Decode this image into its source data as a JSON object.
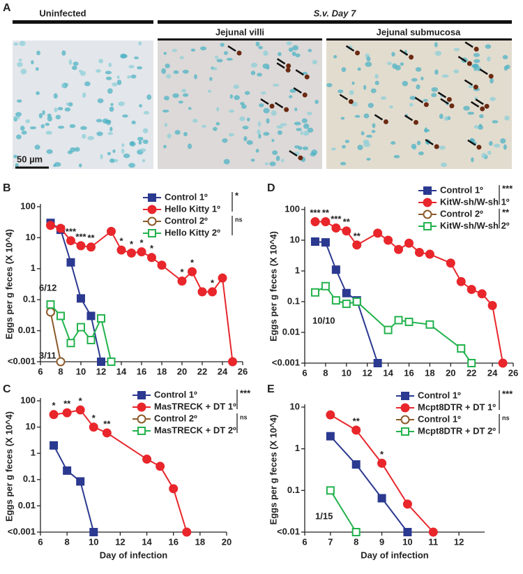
{
  "panel_a": {
    "label": "A",
    "header_left": "Uninfected",
    "header_right": "S.v. Day 7",
    "sub_villi": "Jejunal villi",
    "sub_submucosa": "Jejunal submucosa",
    "scale": "50 µm"
  },
  "chart_data": [
    {
      "type": "line",
      "panel": "B",
      "ylabel": "Eggs per g feces (X 10^4)",
      "log_y": true,
      "xlim": [
        6,
        26
      ],
      "xticks": [
        6,
        8,
        10,
        12,
        14,
        16,
        18,
        20,
        22,
        24,
        26
      ],
      "ylim": [
        0.001,
        100
      ],
      "yticks": [
        100,
        10,
        1,
        0.1,
        0.01,
        {
          "value": 0.001,
          "label": "<0.001"
        }
      ],
      "series": [
        {
          "name": "Control 1º",
          "color": "#2b3990",
          "marker": "square",
          "filled": true,
          "x": [
            7,
            8,
            9,
            10,
            11,
            12
          ],
          "values": [
            30,
            18,
            1.6,
            0.11,
            0.03,
            0.001
          ]
        },
        {
          "name": "Hello Kitty 1º",
          "color": "#e8262b",
          "marker": "circle",
          "filled": true,
          "x": [
            7,
            8,
            9,
            10,
            11,
            13,
            14,
            15,
            16,
            17,
            18,
            20,
            21,
            22,
            23,
            24,
            25
          ],
          "values": [
            25,
            20,
            8,
            5.5,
            5,
            16,
            4,
            3.2,
            3.5,
            2.3,
            1.3,
            0.4,
            0.8,
            0.18,
            0.18,
            0.5,
            0.001
          ]
        },
        {
          "name": "Control 2º",
          "color": "#8b5a2b",
          "marker": "circle",
          "filled": false,
          "x": [
            7,
            8
          ],
          "values": [
            0.04,
            0.001
          ]
        },
        {
          "name": "Hello Kitty 2º",
          "color": "#22b24c",
          "marker": "square",
          "filled": false,
          "x": [
            7,
            8,
            9,
            10,
            11,
            12,
            13
          ],
          "values": [
            0.07,
            0.03,
            0.004,
            0.013,
            0.005,
            0.025,
            0.001
          ]
        }
      ],
      "sig": [
        "*",
        "ns"
      ],
      "annotations": [
        {
          "x": 9,
          "text": "***"
        },
        {
          "x": 10,
          "text": "***"
        },
        {
          "x": 11,
          "text": "**"
        },
        {
          "x": 14,
          "text": "*"
        },
        {
          "x": 15,
          "text": "*"
        },
        {
          "x": 16,
          "text": "*"
        },
        {
          "x": 17,
          "text": "*"
        },
        {
          "x": 20,
          "text": "*"
        },
        {
          "x": 21,
          "text": "*"
        },
        {
          "x": 23,
          "text": "*"
        }
      ],
      "notes": [
        "6/12",
        "3/11"
      ]
    },
    {
      "type": "line",
      "panel": "C",
      "ylabel": "Eggs per g feces (X 10^4)",
      "xlabel": "Day of infection",
      "log_y": true,
      "xlim": [
        6,
        20
      ],
      "xticks": [
        6,
        8,
        10,
        12,
        14,
        16,
        18,
        20
      ],
      "ylim": [
        0.001,
        100
      ],
      "yticks": [
        100,
        10,
        1,
        0.1,
        0.01,
        {
          "value": 0.001,
          "label": "<0.001"
        }
      ],
      "series": [
        {
          "name": "Control 1º",
          "color": "#2b3990",
          "marker": "square",
          "filled": true,
          "x": [
            7,
            8,
            9,
            10
          ],
          "values": [
            2,
            0.22,
            0.085,
            0.001
          ]
        },
        {
          "name": "MasTRECK + DT 1º",
          "color": "#e8262b",
          "marker": "circle",
          "filled": true,
          "x": [
            7,
            8,
            9,
            10,
            11,
            14,
            15,
            16,
            17
          ],
          "values": [
            30,
            35,
            45,
            10,
            6,
            0.6,
            0.32,
            0.045,
            0.001
          ]
        },
        {
          "name": "Control 2º",
          "color": "#8b5a2b",
          "marker": "circle",
          "filled": false,
          "x": [],
          "values": []
        },
        {
          "name": "MasTRECK + DT 2º",
          "color": "#22b24c",
          "marker": "square",
          "filled": false,
          "x": [],
          "values": []
        }
      ],
      "sig": [
        "***",
        "ns"
      ],
      "annotations": [
        {
          "x": 7,
          "text": "*"
        },
        {
          "x": 8,
          "text": "**"
        },
        {
          "x": 9,
          "text": "*"
        },
        {
          "x": 10,
          "text": "*"
        },
        {
          "x": 11,
          "text": "**"
        }
      ],
      "notes": []
    },
    {
      "type": "line",
      "panel": "D",
      "ylabel": "Eggs per g feces (X 10^4)",
      "log_y": true,
      "xlim": [
        6,
        26
      ],
      "xticks": [
        6,
        8,
        10,
        12,
        14,
        16,
        18,
        20,
        22,
        24,
        26
      ],
      "ylim": [
        0.001,
        100
      ],
      "yticks": [
        100,
        10,
        1,
        0.1,
        0.01,
        {
          "value": 0.001,
          "label": "<0.001"
        }
      ],
      "series": [
        {
          "name": "Control 1º",
          "color": "#2b3990",
          "marker": "square",
          "filled": true,
          "x": [
            7,
            8,
            9,
            10,
            11,
            13
          ],
          "values": [
            9,
            8.5,
            1.1,
            0.19,
            0.11,
            0.001
          ]
        },
        {
          "name": "KitW-sh/W-sh 1º",
          "color": "#e8262b",
          "marker": "circle",
          "filled": true,
          "x": [
            7,
            8,
            9,
            10,
            11,
            13,
            14,
            15,
            16,
            17,
            18,
            20,
            21,
            22,
            23,
            24,
            25
          ],
          "values": [
            40,
            40,
            25,
            20,
            7,
            17,
            10,
            5,
            8,
            4,
            3.5,
            1.8,
            0.45,
            0.25,
            0.18,
            0.075,
            0.001
          ]
        },
        {
          "name": "Control 2º",
          "color": "#8b5a2b",
          "marker": "circle",
          "filled": false,
          "x": [],
          "values": []
        },
        {
          "name": "KitW-sh/W-sh 2º",
          "color": "#22b24c",
          "marker": "square",
          "filled": false,
          "x": [
            7,
            8,
            9,
            10,
            11,
            14,
            15,
            16,
            18,
            21,
            22
          ],
          "values": [
            0.2,
            0.32,
            0.11,
            0.085,
            0.1,
            0.012,
            0.025,
            0.022,
            0.018,
            0.003,
            0.001
          ]
        }
      ],
      "sig": [
        "***",
        "**"
      ],
      "annotations": [
        {
          "x": 7,
          "text": "***"
        },
        {
          "x": 8,
          "text": "**"
        },
        {
          "x": 9,
          "text": "***"
        },
        {
          "x": 10,
          "text": "**"
        },
        {
          "x": 11,
          "text": "**"
        }
      ],
      "notes": [
        "10/10"
      ]
    },
    {
      "type": "line",
      "panel": "E",
      "ylabel": "Eggs per g feces (X 10^4)",
      "xlabel": "Day of infection",
      "log_y": true,
      "xlim": [
        6,
        13
      ],
      "xticks": [
        6,
        7,
        8,
        9,
        10,
        11,
        12
      ],
      "ylim": [
        0.01,
        10
      ],
      "yticks": [
        10,
        1,
        0.1,
        {
          "value": 0.01,
          "label": "<0.01"
        }
      ],
      "series": [
        {
          "name": "Control 1º",
          "color": "#2b3990",
          "marker": "square",
          "filled": true,
          "x": [
            7,
            8,
            9,
            10
          ],
          "values": [
            2,
            0.42,
            0.065,
            0.01
          ]
        },
        {
          "name": "Mcpt8DTR + DT 1º",
          "color": "#e8262b",
          "marker": "circle",
          "filled": true,
          "x": [
            7,
            8,
            9,
            10,
            11
          ],
          "values": [
            6.5,
            2.8,
            0.45,
            0.047,
            0.01
          ]
        },
        {
          "name": "Control 1º",
          "color": "#8b5a2b",
          "marker": "circle",
          "filled": false,
          "x": [],
          "values": []
        },
        {
          "name": "Mcpt8DTR + DT 2º",
          "color": "#22b24c",
          "marker": "square",
          "filled": false,
          "x": [
            7,
            8
          ],
          "values": [
            0.1,
            0.01
          ]
        }
      ],
      "sig": [
        "***",
        "ns"
      ],
      "annotations": [
        {
          "x": 8,
          "text": "**"
        },
        {
          "x": 9,
          "text": "*"
        }
      ],
      "notes": [
        "1/15"
      ]
    }
  ]
}
